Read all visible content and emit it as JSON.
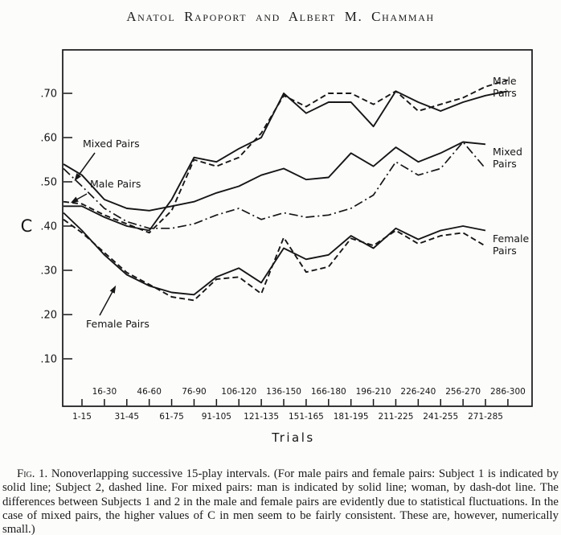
{
  "page": {
    "running_head": "Anatol Rapoport and Albert M. Chammah"
  },
  "figure": {
    "caption_label": "Fig. 1.",
    "caption_text": "Nonoverlapping successive 15-play intervals. (For male pairs and female pairs: Subject 1 is indicated by solid line; Subject 2, dashed line. For mixed pairs: man is indicated by solid line; woman, by dash-dot line. The differences between Subjects 1 and 2 in the male and female pairs are evidently due to statistical fluctuations. In the case of mixed pairs, the higher values of C in men seem to be fairly consistent. These are, however, numerically small.)"
  },
  "chart_data": {
    "type": "line",
    "title": "",
    "xlabel": "Trials",
    "ylabel": "C",
    "ylim": [
      0,
      0.78
    ],
    "grid": false,
    "legend_position": "right-margin-labels",
    "y_ticks": [
      {
        "label": ".70",
        "v": 0.7
      },
      {
        "label": ".60",
        "v": 0.6
      },
      {
        "label": ".50",
        "v": 0.5
      },
      {
        "label": ".40",
        "v": 0.4
      },
      {
        "label": ".30",
        "v": 0.3
      },
      {
        "label": ".20",
        "v": 0.2
      },
      {
        "label": ".10",
        "v": 0.1
      }
    ],
    "x_ticks_upper": [
      "16-30",
      "46-60",
      "76-90",
      "106-120",
      "136-150",
      "166-180",
      "196-210",
      "226-240",
      "256-270",
      "286-300"
    ],
    "x_ticks_lower": [
      "1-15",
      "31-45",
      "61-75",
      "91-105",
      "121-135",
      "151-165",
      "181-195",
      "211-225",
      "241-255",
      "271-285"
    ],
    "annotations_left": [
      "Mixed Pairs",
      "Male Pairs",
      "Female Pairs"
    ],
    "labels_right": [
      [
        "Male",
        "Pairs"
      ],
      [
        "Mixed",
        "Pairs"
      ],
      [
        "Female",
        "Pairs"
      ]
    ],
    "series": [
      {
        "name": "male-pairs-subject1",
        "style": "solid",
        "start": 0.445,
        "values": [
          0.445,
          0.42,
          0.4,
          0.39,
          0.46,
          0.555,
          0.545,
          0.575,
          0.6,
          0.7,
          0.655,
          0.68,
          0.68,
          0.625,
          0.705,
          0.68,
          0.66,
          0.68,
          0.695,
          0.705
        ]
      },
      {
        "name": "male-pairs-subject2",
        "style": "dashed",
        "start": 0.455,
        "values": [
          0.45,
          0.425,
          0.405,
          0.385,
          0.435,
          0.55,
          0.535,
          0.555,
          0.61,
          0.695,
          0.67,
          0.7,
          0.7,
          0.675,
          0.705,
          0.66,
          0.675,
          0.69,
          0.715,
          0.73
        ]
      },
      {
        "name": "mixed-pairs-man",
        "style": "solid",
        "start": 0.54,
        "values": [
          0.515,
          0.46,
          0.44,
          0.435,
          0.445,
          0.455,
          0.475,
          0.49,
          0.515,
          0.53,
          0.505,
          0.51,
          0.565,
          0.535,
          0.578,
          0.545,
          0.565,
          0.59,
          0.585,
          null
        ]
      },
      {
        "name": "mixed-pairs-woman",
        "style": "dashdot",
        "start": 0.53,
        "values": [
          0.49,
          0.44,
          0.41,
          0.395,
          0.395,
          0.405,
          0.425,
          0.44,
          0.415,
          0.43,
          0.42,
          0.425,
          0.44,
          0.47,
          0.545,
          0.515,
          0.53,
          0.59,
          0.53,
          null
        ]
      },
      {
        "name": "female-pairs-subject1",
        "style": "solid",
        "start": 0.43,
        "values": [
          0.39,
          0.335,
          0.29,
          0.265,
          0.25,
          0.245,
          0.285,
          0.305,
          0.272,
          0.35,
          0.325,
          0.335,
          0.378,
          0.35,
          0.395,
          0.37,
          0.39,
          0.4,
          0.39,
          null
        ]
      },
      {
        "name": "female-pairs-subject2",
        "style": "dashed",
        "start": 0.415,
        "values": [
          0.385,
          0.34,
          0.295,
          0.268,
          0.24,
          0.232,
          0.28,
          0.285,
          0.247,
          0.374,
          0.296,
          0.308,
          0.372,
          0.356,
          0.39,
          0.36,
          0.378,
          0.385,
          0.355,
          null
        ]
      }
    ]
  }
}
